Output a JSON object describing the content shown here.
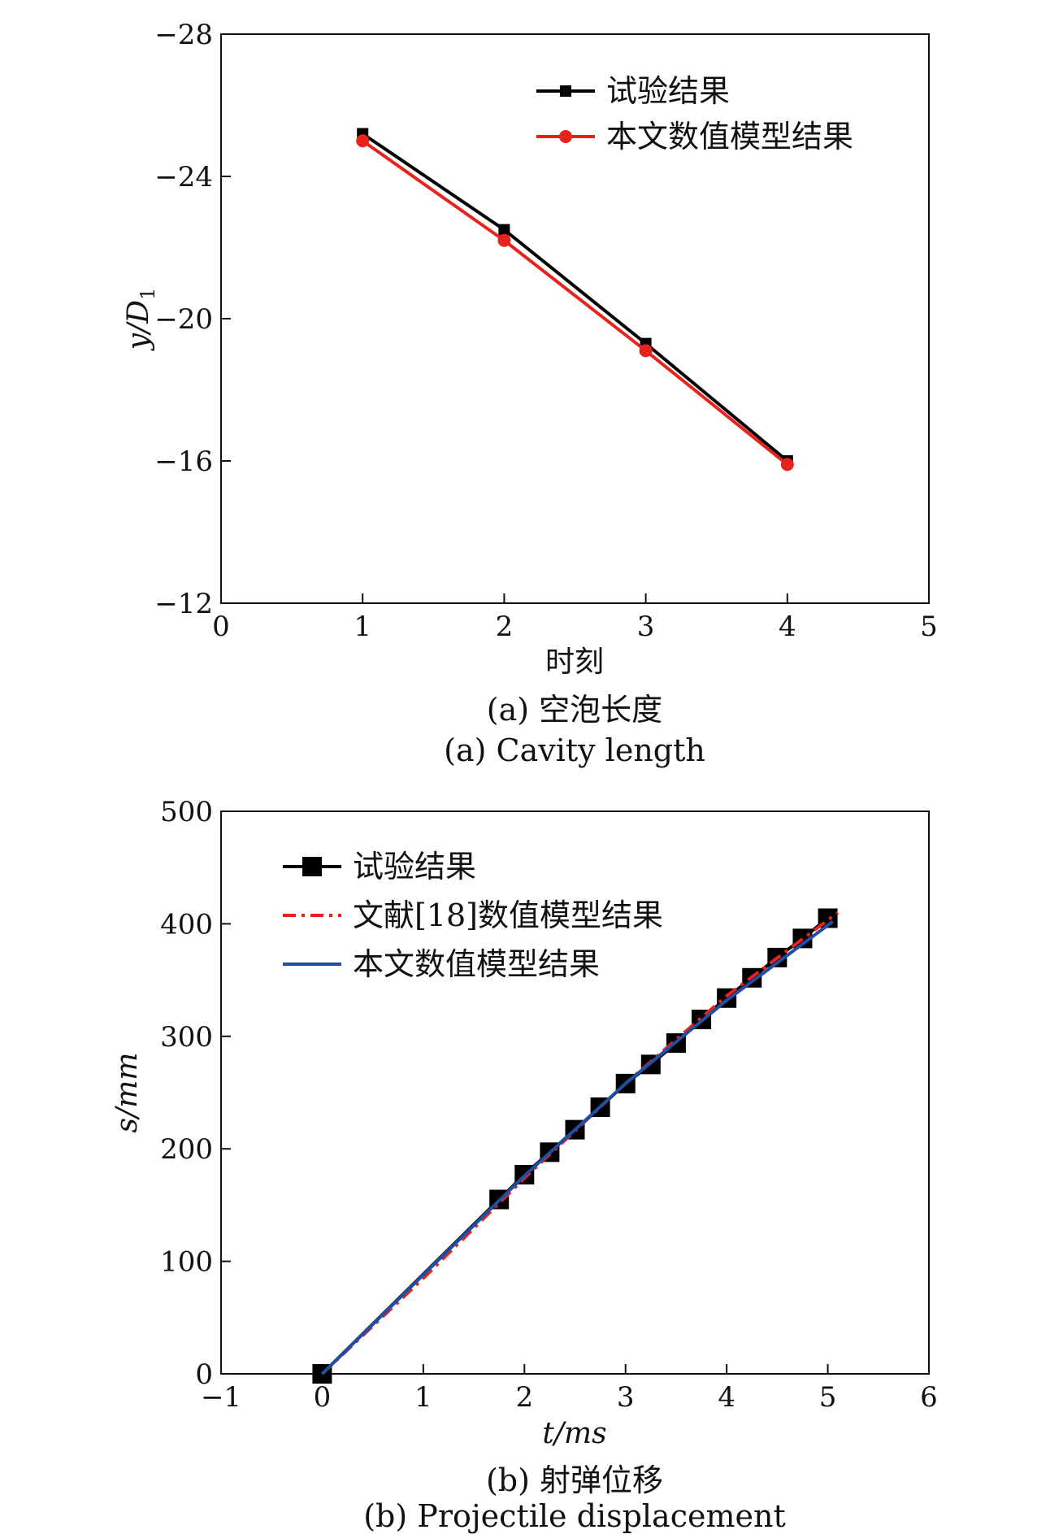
{
  "chart_data": [
    {
      "type": "line",
      "xlabel": "时刻",
      "ylabel": "y/D",
      "ylabel_sub": "1",
      "xlim": [
        0,
        5
      ],
      "ylim": [
        -12,
        -28
      ],
      "y_inverted": true,
      "xticks": [
        "0",
        "1",
        "2",
        "3",
        "4",
        "5"
      ],
      "yticks": [
        "−12",
        "−16",
        "−20",
        "−24",
        "−28"
      ],
      "grid": false,
      "legend_position": "top-right",
      "series": [
        {
          "name": "试验结果",
          "color": "#000000",
          "marker": "square",
          "line": "solid",
          "x": [
            1,
            2,
            3,
            4
          ],
          "y": [
            -25.2,
            -22.5,
            -19.3,
            -16.0
          ]
        },
        {
          "name": "本文数值模型结果",
          "color": "#e8231d",
          "marker": "circle",
          "line": "solid",
          "x": [
            1,
            2,
            3,
            4
          ],
          "y": [
            -25.0,
            -22.2,
            -19.1,
            -15.9
          ]
        }
      ],
      "caption_cn": "(a) 空泡长度",
      "caption_en": "(a) Cavity length"
    },
    {
      "type": "line",
      "xlabel": "t/ms",
      "ylabel": "s/mm",
      "xlim": [
        -1,
        6
      ],
      "ylim": [
        0,
        500
      ],
      "xticks": [
        "−1",
        "0",
        "1",
        "2",
        "3",
        "4",
        "5",
        "6"
      ],
      "yticks": [
        "0",
        "100",
        "200",
        "300",
        "400",
        "500"
      ],
      "grid": false,
      "legend_position": "top-left",
      "series": [
        {
          "name": "试验结果",
          "color": "#000000",
          "marker": "square",
          "line": "solid",
          "x": [
            0,
            1.75,
            2.0,
            2.25,
            2.5,
            2.75,
            3.0,
            3.25,
            3.5,
            3.75,
            4.0,
            4.25,
            4.5,
            4.75,
            5.0
          ],
          "y": [
            0,
            155,
            177,
            197,
            217,
            237,
            258,
            275,
            294,
            315,
            334,
            352,
            370,
            387,
            405
          ]
        },
        {
          "name": "文献[18]数值模型结果",
          "color": "#e8231d",
          "marker": "none",
          "line": "dashdot",
          "x": [
            0,
            1,
            2,
            3,
            4,
            5.1
          ],
          "y": [
            0,
            85,
            174,
            258,
            336,
            410
          ]
        },
        {
          "name": "本文数值模型结果",
          "color": "#1f4ea3",
          "marker": "none",
          "line": "solid",
          "x": [
            0,
            1,
            2,
            3,
            4,
            5.05
          ],
          "y": [
            0,
            88,
            176,
            258,
            332,
            402
          ]
        }
      ],
      "caption_cn": "(b) 射弹位移",
      "caption_en": "(b) Projectile displacement"
    }
  ]
}
